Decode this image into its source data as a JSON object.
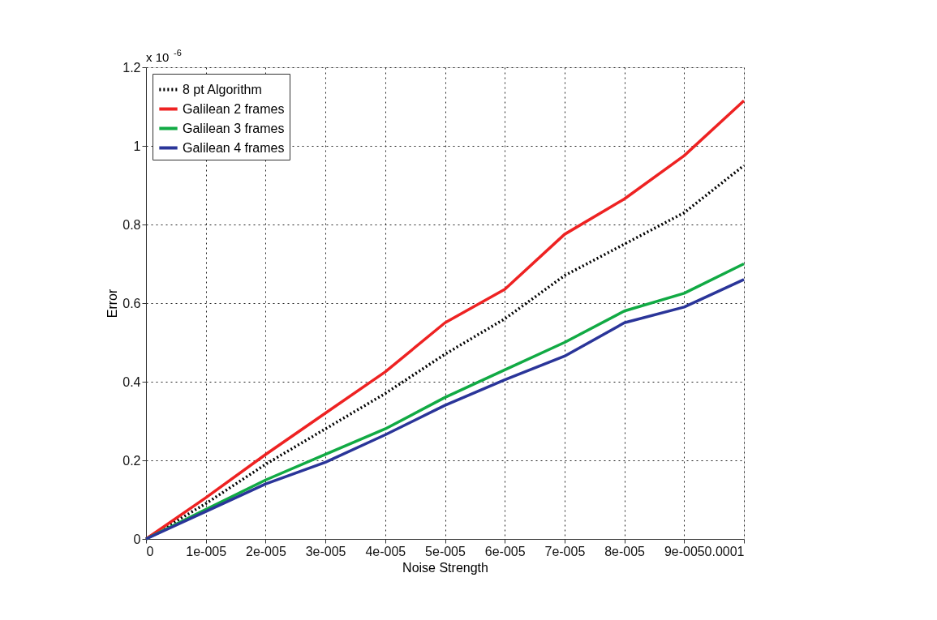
{
  "chart_data": {
    "type": "line",
    "xlabel": "Noise Strength",
    "ylabel": "Error",
    "x": [
      0,
      1e-05,
      2e-05,
      3e-05,
      4e-05,
      5e-05,
      6e-05,
      7e-05,
      8e-05,
      9e-05,
      0.0001
    ],
    "series": [
      {
        "name": "8 pt Algorithm",
        "color": "#000000",
        "line_style": "dotted",
        "values": [
          0,
          0.09,
          0.19,
          0.28,
          0.37,
          0.47,
          0.56,
          0.67,
          0.75,
          0.83,
          0.95
        ]
      },
      {
        "name": "Galilean 2 frames",
        "color": "#ee2222",
        "line_style": "solid",
        "values": [
          0,
          0.105,
          0.215,
          0.32,
          0.425,
          0.55,
          0.635,
          0.775,
          0.865,
          0.975,
          1.115
        ]
      },
      {
        "name": "Galilean 3 frames",
        "color": "#11aa44",
        "line_style": "solid",
        "values": [
          0,
          0.075,
          0.15,
          0.215,
          0.28,
          0.36,
          0.43,
          0.5,
          0.58,
          0.625,
          0.7
        ]
      },
      {
        "name": "Galilean 4 frames",
        "color": "#2a3599",
        "line_style": "solid",
        "values": [
          0,
          0.07,
          0.14,
          0.195,
          0.265,
          0.34,
          0.405,
          0.465,
          0.55,
          0.59,
          0.66
        ]
      }
    ],
    "xlim": [
      0,
      0.0001
    ],
    "ylim": [
      0,
      1.2
    ],
    "xticks": [
      0,
      {
        "value": 1e-05,
        "label": "1e-005"
      },
      {
        "value": 2e-05,
        "label": "2e-005"
      },
      {
        "value": 3e-05,
        "label": "3e-005"
      },
      {
        "value": 4e-05,
        "label": "4e-005"
      },
      {
        "value": 5e-05,
        "label": "5e-005"
      },
      {
        "value": 6e-05,
        "label": "6e-005"
      },
      {
        "value": 7e-05,
        "label": "7e-005"
      },
      {
        "value": 8e-05,
        "label": "8e-005"
      },
      {
        "value": 9e-05,
        "label": "9e-005"
      },
      0.0001
    ],
    "yticks": [
      0,
      0.2,
      0.4,
      0.6,
      0.8,
      1,
      1.2
    ],
    "annotations": [
      "x 10$^{-6}$"
    ],
    "grid": true,
    "legend": "top left",
    "marker": "none"
  }
}
